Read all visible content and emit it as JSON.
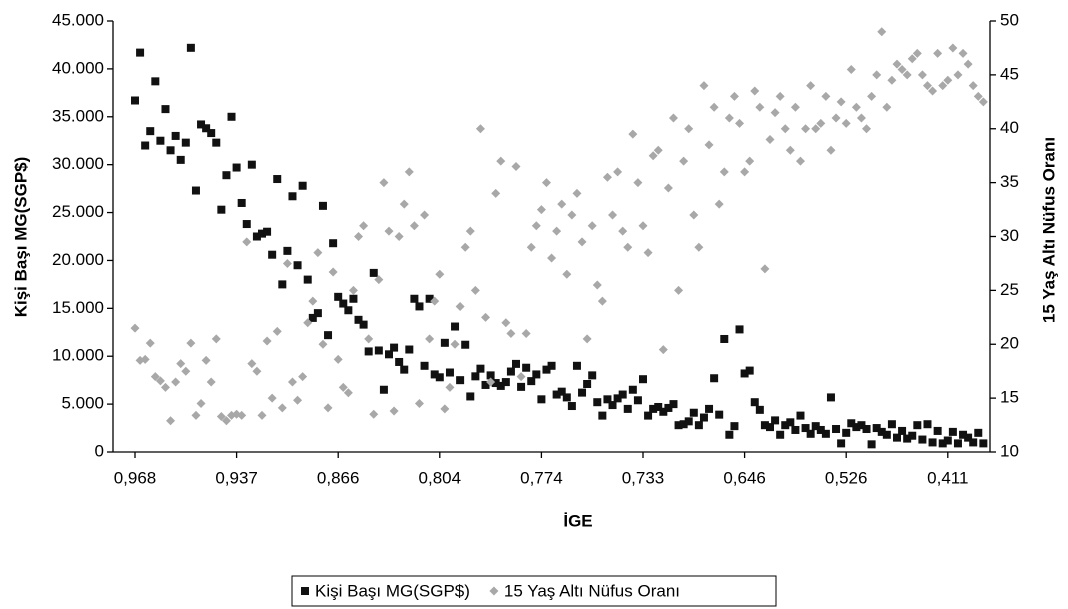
{
  "chart_data": {
    "type": "scatter",
    "x_label": "İGE",
    "y_label": "Kişi Başı MG(SGP$)",
    "y2_label": "15 Yaş Altı Nüfus Oranı",
    "categories": [
      "0,968",
      null,
      null,
      null,
      null,
      null,
      null,
      null,
      null,
      null,
      null,
      null,
      null,
      null,
      null,
      null,
      null,
      null,
      null,
      null,
      "0,937",
      null,
      null,
      null,
      null,
      null,
      null,
      null,
      null,
      null,
      null,
      null,
      null,
      null,
      null,
      null,
      null,
      null,
      null,
      null,
      "0,866",
      null,
      null,
      null,
      null,
      null,
      null,
      null,
      null,
      null,
      null,
      null,
      null,
      null,
      null,
      null,
      null,
      null,
      null,
      null,
      "0,804",
      null,
      null,
      null,
      null,
      null,
      null,
      null,
      null,
      null,
      null,
      null,
      null,
      null,
      null,
      null,
      null,
      null,
      null,
      null,
      "0,774",
      null,
      null,
      null,
      null,
      null,
      null,
      null,
      null,
      null,
      null,
      null,
      null,
      null,
      null,
      null,
      null,
      null,
      null,
      null,
      "0,733",
      null,
      null,
      null,
      null,
      null,
      null,
      null,
      null,
      null,
      null,
      null,
      null,
      null,
      null,
      null,
      null,
      null,
      null,
      null,
      "0,646",
      null,
      null,
      null,
      null,
      null,
      null,
      null,
      null,
      null,
      null,
      null,
      null,
      null,
      null,
      null,
      null,
      null,
      null,
      null,
      "0,526",
      null,
      null,
      null,
      null,
      null,
      null,
      null,
      null,
      null,
      null,
      null,
      null,
      null,
      null,
      null,
      null,
      null,
      null,
      null,
      "0,411",
      null,
      null,
      null,
      null,
      null,
      null,
      null
    ],
    "ylim": [
      0,
      45000
    ],
    "yticks": [
      0,
      {
        "value": 5000,
        "label": "5.000"
      },
      {
        "value": 10000,
        "label": "10.000"
      },
      {
        "value": 15000,
        "label": "15.000"
      },
      {
        "value": 20000,
        "label": "20.000"
      },
      {
        "value": 25000,
        "label": "25.000"
      },
      {
        "value": 30000,
        "label": "30.000"
      },
      {
        "value": 35000,
        "label": "35.000"
      },
      {
        "value": 40000,
        "label": "40.000"
      },
      {
        "value": 45000,
        "label": "45.000"
      }
    ],
    "y2lim": [
      10,
      50
    ],
    "y2ticks": [
      10,
      15,
      20,
      25,
      30,
      35,
      40,
      45,
      50
    ],
    "series": [
      {
        "name": "Kişi Başı MG(SGP$)",
        "color": "#111111",
        "marker": "square",
        "values": [
          36700,
          41700,
          32000,
          33500,
          38700,
          32500,
          35800,
          31500,
          33000,
          30500,
          32300,
          42200,
          27300,
          34200,
          33800,
          33300,
          32300,
          25300,
          28900,
          35000,
          29700,
          26000,
          23800,
          30000,
          22500,
          22800,
          23000,
          20600,
          28500,
          17500,
          21000,
          26700,
          19500,
          27800,
          18000,
          14000,
          14500,
          25700,
          12200,
          21800,
          16200,
          15500,
          14800,
          16000,
          13800,
          13300,
          10500,
          18700,
          10600,
          6500,
          10200,
          10900,
          9400,
          8600,
          10700,
          16000,
          15200,
          9000,
          16000,
          8100,
          7800,
          11400,
          8300,
          13100,
          7500,
          11200,
          5800,
          7900,
          8700,
          7000,
          8000,
          7200,
          6900,
          7300,
          8400,
          9200,
          6800,
          8800,
          7400,
          8100,
          5500,
          8600,
          9000,
          6000,
          6300,
          5700,
          4800,
          9000,
          6200,
          7100,
          8000,
          5200,
          3800,
          5500,
          4900,
          5600,
          6000,
          4500,
          6500,
          5400,
          7600,
          3800,
          4500,
          4700,
          4200,
          4600,
          5000,
          2800,
          2900,
          3200,
          4100,
          2800,
          3600,
          4500,
          7700,
          3900,
          11800,
          1800,
          2700,
          12800,
          8200,
          8500,
          5200,
          4400,
          2800,
          2600,
          3300,
          1800,
          2800,
          3100,
          2300,
          3800,
          2500,
          1900,
          2700,
          2300,
          1900,
          5700,
          2400,
          900,
          2000,
          3000,
          2600,
          2800,
          2400,
          800,
          2500,
          2100,
          1800,
          2900,
          1500,
          2200,
          1400,
          1700,
          2800,
          1300,
          2900,
          1000,
          2200,
          900,
          1200,
          2100,
          900,
          1800,
          1500,
          1000,
          2000,
          900
        ]
      },
      {
        "name": "15 Yaş Altı Nüfus Oranı",
        "color": "#a8a8a8",
        "marker": "diamond",
        "axis": "y2",
        "values": [
          21.5,
          18.5,
          18.6,
          20.1,
          17.0,
          16.6,
          16.0,
          12.9,
          16.5,
          18.2,
          17.5,
          20.1,
          13.4,
          14.5,
          18.5,
          16.5,
          20.5,
          13.3,
          12.9,
          13.4,
          13.5,
          13.4,
          29.5,
          18.2,
          17.5,
          13.4,
          20.3,
          15.0,
          21.2,
          14.1,
          27.5,
          16.5,
          14.8,
          17.0,
          22.0,
          24.0,
          28.5,
          20.0,
          14.1,
          26.7,
          18.6,
          16.0,
          15.5,
          25.0,
          30.0,
          31.0,
          20.5,
          13.5,
          26.0,
          35.0,
          30.5,
          13.8,
          30.0,
          33.0,
          36.0,
          31.0,
          14.5,
          32.0,
          20.5,
          24.0,
          26.5,
          14.0,
          16.0,
          20.0,
          23.5,
          29.0,
          30.5,
          25.0,
          40.0,
          22.5,
          16.5,
          34.0,
          37.0,
          22.0,
          21.0,
          36.5,
          17.0,
          21.0,
          29.0,
          31.0,
          32.5,
          35.0,
          28.0,
          30.5,
          33.0,
          26.5,
          32.0,
          34.0,
          29.5,
          20.5,
          31.0,
          25.5,
          24.0,
          35.5,
          32.0,
          36.0,
          30.5,
          29.0,
          39.5,
          35.0,
          31.0,
          28.5,
          37.5,
          38.0,
          19.5,
          34.5,
          41.0,
          25.0,
          37.0,
          40.0,
          32.0,
          29.0,
          44.0,
          38.5,
          42.0,
          33.0,
          36.0,
          41.0,
          43.0,
          40.5,
          36.0,
          37.0,
          43.5,
          42.0,
          27.0,
          39.0,
          41.5,
          43.0,
          40.0,
          38.0,
          42.0,
          37.0,
          40.0,
          44.0,
          40.0,
          40.5,
          43.0,
          38.0,
          41.0,
          42.5,
          40.5,
          45.5,
          42.0,
          41.0,
          40.0,
          43.0,
          45.0,
          49.0,
          42.0,
          44.5,
          46.0,
          45.5,
          45.0,
          46.5,
          47.0,
          45.0,
          44.0,
          43.5,
          47.0,
          44.0,
          44.5,
          47.5,
          45.0,
          47.0,
          46.0,
          44.0,
          43.0,
          42.5
        ]
      }
    ]
  }
}
